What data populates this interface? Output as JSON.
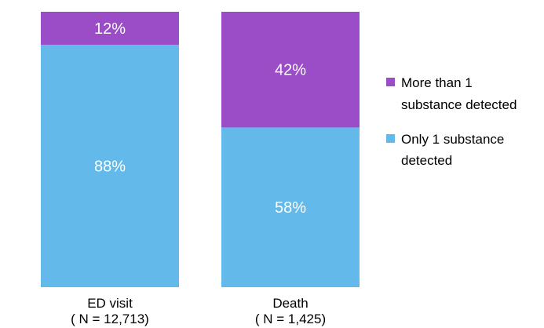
{
  "chart_data": {
    "type": "bar",
    "stacked": true,
    "percent_stacked": true,
    "categories": [
      "ED visit",
      "Death"
    ],
    "category_sublabels": [
      "( N = 12,713)",
      "( N = 1,425)"
    ],
    "series": [
      {
        "name": "Only 1 substance detected",
        "values": [
          88,
          58
        ],
        "labels": [
          "88%",
          "58%"
        ],
        "color": "#63b9e9"
      },
      {
        "name": "More than 1 substance detected",
        "values": [
          12,
          42
        ],
        "labels": [
          "12%",
          "42%"
        ],
        "color": "#9b4cc7"
      }
    ],
    "ylim": [
      0,
      100
    ],
    "grid": false,
    "legend_position": "right",
    "legend_entries": [
      {
        "lines": [
          "More than 1",
          "substance detected"
        ],
        "color": "#9b4cc7"
      },
      {
        "lines": [
          "Only 1 substance",
          "detected"
        ],
        "color": "#63b9e9"
      }
    ]
  }
}
